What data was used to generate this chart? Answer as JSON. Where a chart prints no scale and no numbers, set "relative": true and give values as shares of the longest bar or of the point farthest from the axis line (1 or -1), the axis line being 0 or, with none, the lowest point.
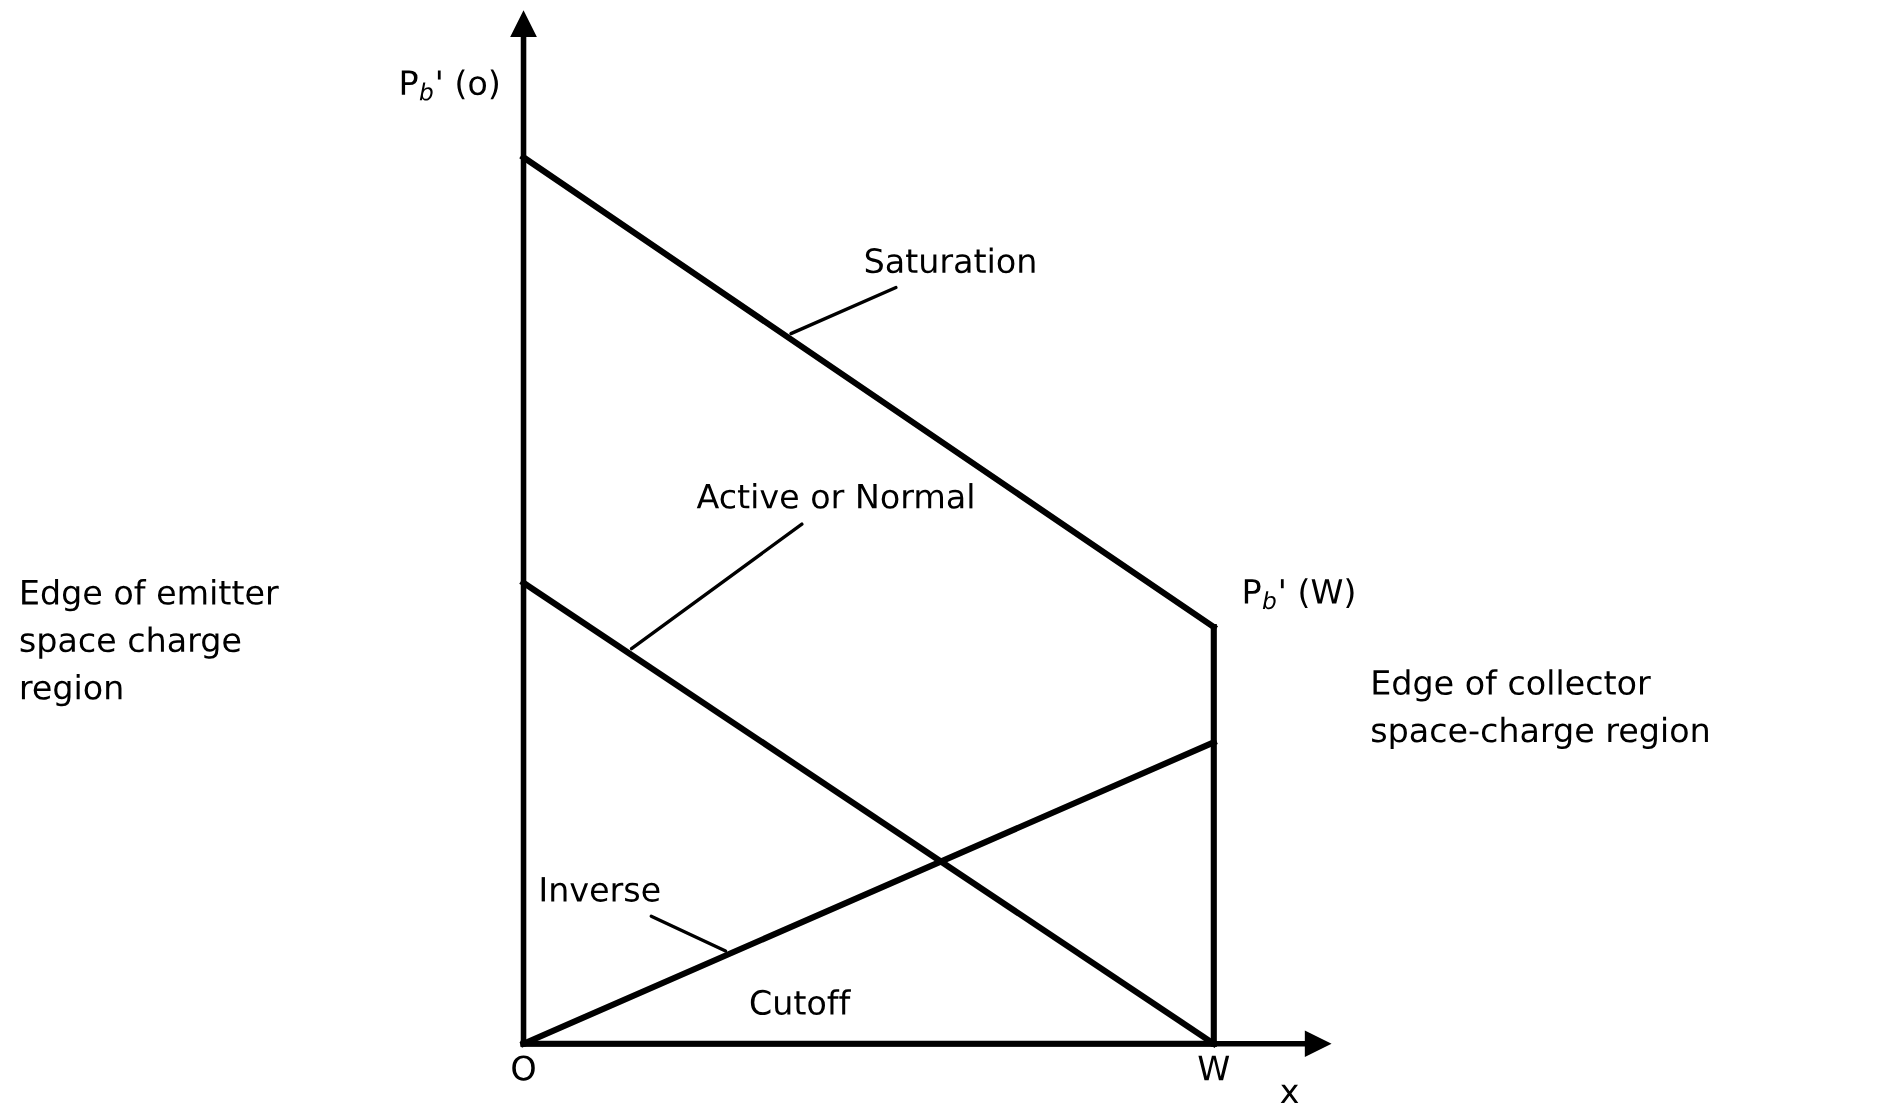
{
  "chart_data": {
    "type": "line",
    "relative": true,
    "xlabel": "x",
    "categories": [
      "O",
      "W"
    ],
    "tick_labels": "x",
    "ref_lines": [
      {
        "axis": "x",
        "value": "O",
        "color": "#000000",
        "line_style": "solid"
      }
    ],
    "grid": false,
    "legend": false,
    "marker": "none",
    "line_style": "solid",
    "series": [
      {
        "name": "Saturation",
        "color": "#000000",
        "values": [
          1,
          0.47
        ]
      },
      {
        "name": "Active or Normal",
        "color": "#000000",
        "values": [
          0.52,
          0
        ]
      },
      {
        "name": "Inverse",
        "color": "#000000",
        "values": [
          0,
          0.34
        ]
      },
      {
        "name": "Cutoff",
        "color": "#000000",
        "values": [
          0,
          0
        ]
      },
      {
        "color": "#000000",
        "x": [
          "W",
          "W"
        ],
        "values": [
          0,
          0.47
        ]
      }
    ],
    "annotations": [
      {
        "text": "P$_{b}$' (o)",
        "x": "O",
        "y": 1
      },
      {
        "text": "P$_{b}$' (W)",
        "x": "W",
        "y": 0.47
      },
      "Edge of emitter\nspace charge\nregion",
      "Edge of collector\nspace-charge region"
    ]
  }
}
